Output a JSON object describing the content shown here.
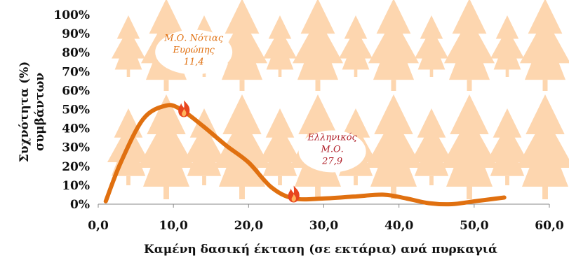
{
  "chart_data": {
    "type": "line",
    "xlabel": "Καμένη δασική έκταση (σε εκτάρια) ανά πυρκαγιά",
    "ylabel": [
      "Συχνότητα (%)",
      "συμβάντων"
    ],
    "xlim": [
      0,
      60
    ],
    "ylim": [
      0,
      100
    ],
    "x_ticks": [
      "0,0",
      "10,0",
      "20,0",
      "30,0",
      "40,0",
      "50,0",
      "60,0"
    ],
    "y_ticks": [
      "0%",
      "10%",
      "20%",
      "30%",
      "40%",
      "50%",
      "60%",
      "70%",
      "80%",
      "90%",
      "100%"
    ],
    "grid": false,
    "series": [
      {
        "color": "#E07010",
        "x": [
          1,
          3,
          6,
          9,
          11,
          14,
          17,
          20,
          23,
          26,
          30,
          34,
          38,
          41,
          44,
          47,
          50,
          54
        ],
        "y": [
          1.5,
          22,
          45,
          52,
          50,
          41,
          31,
          22,
          9,
          3,
          3,
          4,
          5,
          3,
          0.5,
          0,
          1.5,
          3.5
        ]
      }
    ],
    "annotations": [
      {
        "lines": [
          "Μ.Ο. Νότιας",
          "Ευρώπης",
          "11,4"
        ],
        "x": 11.4,
        "y": 50,
        "color": "#E07010",
        "marker": "flame-icon"
      },
      {
        "lines": [
          "Ελληνικός",
          "Μ.Ο.",
          "27,9"
        ],
        "x": 26.0,
        "y": 5,
        "color": "#B0202A",
        "marker": "flame-icon"
      }
    ],
    "background": "tree-pattern",
    "tree_color": "#FDD6AF"
  }
}
